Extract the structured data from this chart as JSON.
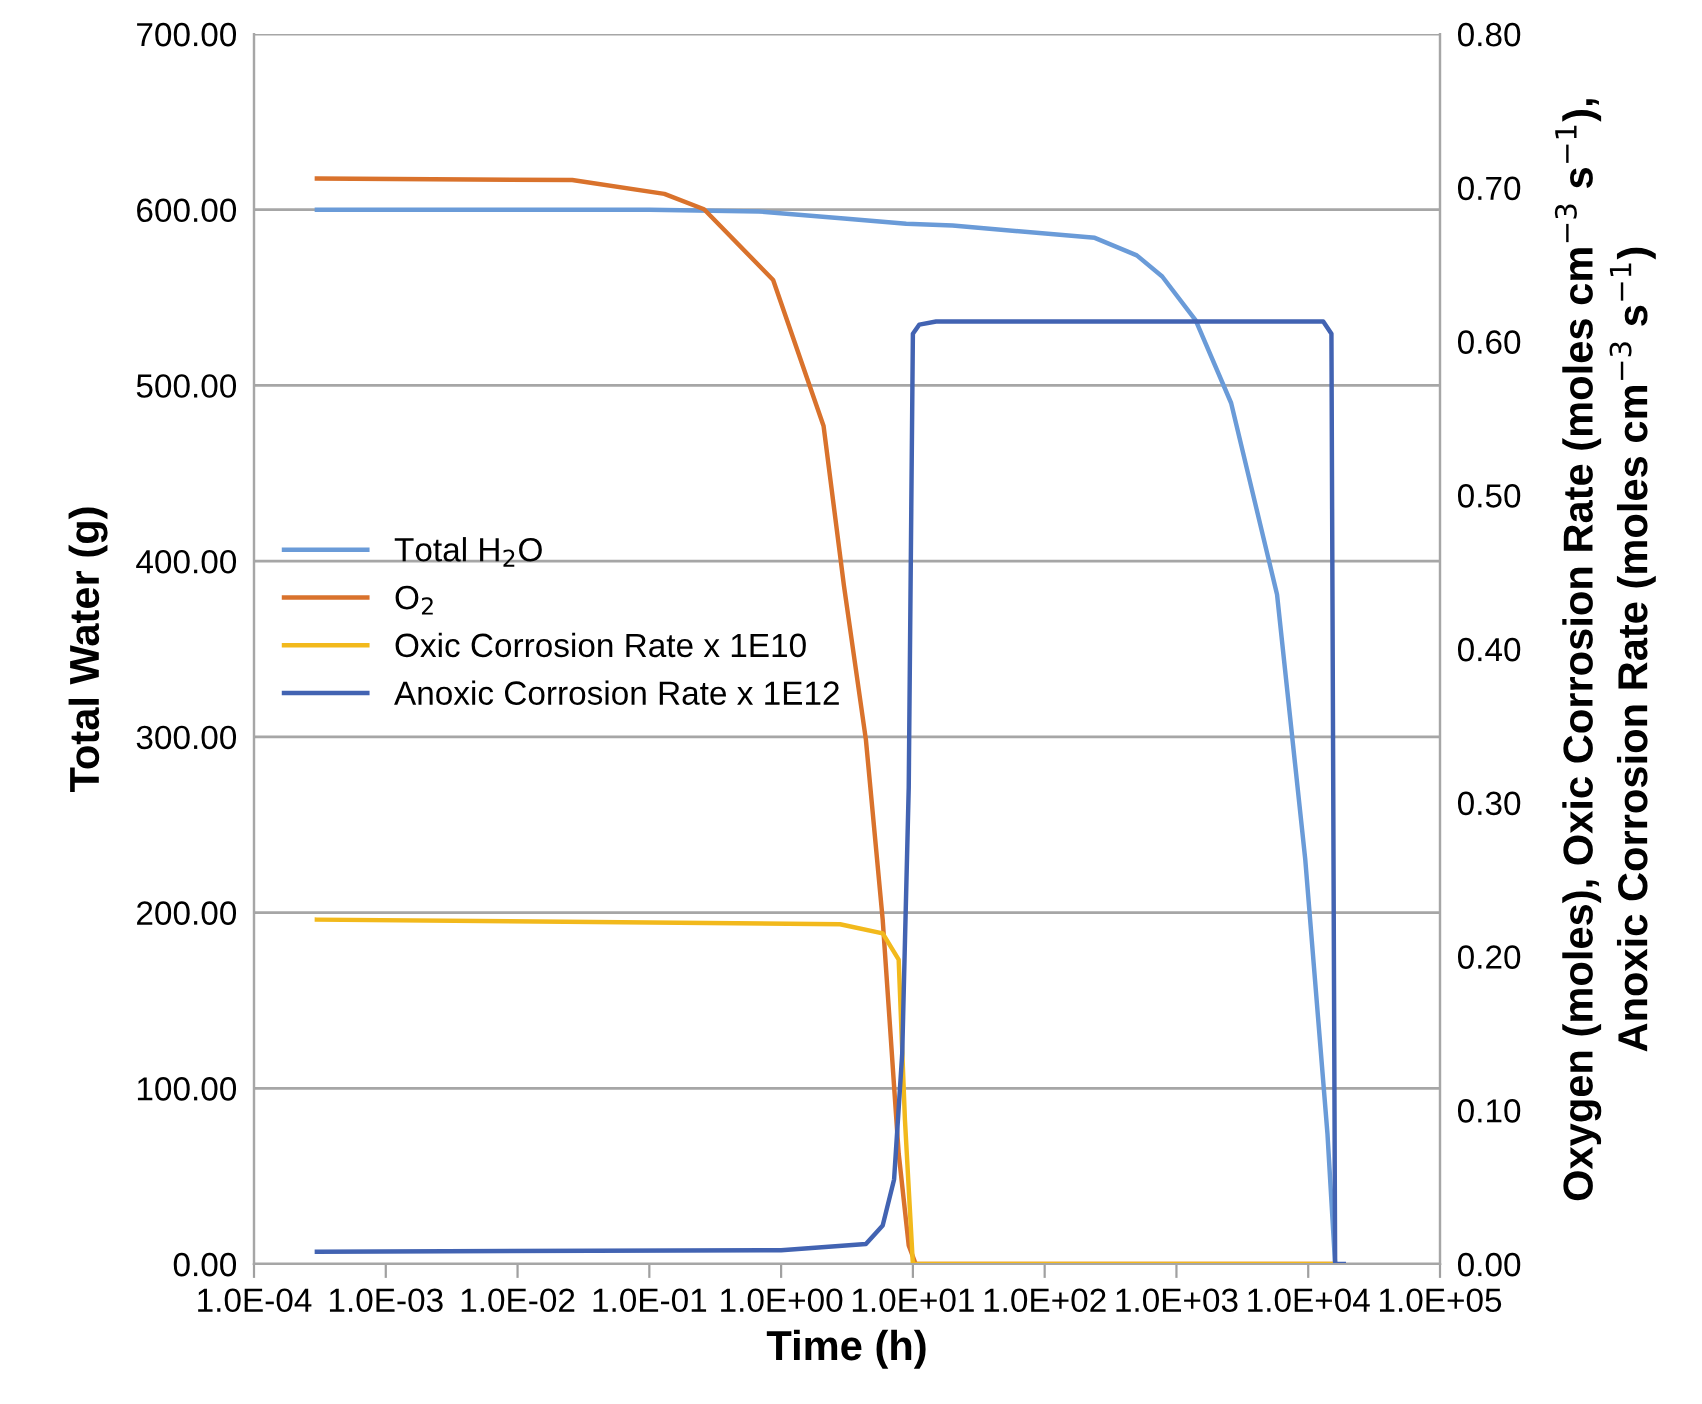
{
  "chart_data": {
    "type": "line",
    "xlabel": "Time (h)",
    "ylabel": "Total Water (g)",
    "y2label": "Oxygen (moles), Oxic Corrosion Rate (moles cm$^{−3}$ s$^{−1}$),\nAnoxic Corrosion Rate (moles cm$^{−3}$ s$^{−1}$)",
    "log": "x",
    "grid": "y",
    "legend": "left",
    "marker": "none",
    "line_style": "solid",
    "xlim": [
      0.0001,
      100000
    ],
    "xticks": [
      {
        "value": 0.0001,
        "label": "1.0E-04"
      },
      {
        "value": 0.001,
        "label": "1.0E-03"
      },
      {
        "value": 0.01,
        "label": "1.0E-02"
      },
      {
        "value": 0.1,
        "label": "1.0E-01"
      },
      {
        "value": 1,
        "label": "1.0E+00"
      },
      {
        "value": 10,
        "label": "1.0E+01"
      },
      {
        "value": 100,
        "label": "1.0E+02"
      },
      {
        "value": 1000,
        "label": "1.0E+03"
      },
      {
        "value": 10000,
        "label": "1.0E+04"
      },
      {
        "value": 100000,
        "label": "1.0E+05"
      }
    ],
    "ylim": [
      0,
      700
    ],
    "yticks": [
      {
        "value": 0,
        "label": "0.00"
      },
      {
        "value": 100,
        "label": "100.00"
      },
      {
        "value": 200,
        "label": "200.00"
      },
      {
        "value": 300,
        "label": "300.00"
      },
      {
        "value": 400,
        "label": "400.00"
      },
      {
        "value": 500,
        "label": "500.00"
      },
      {
        "value": 600,
        "label": "600.00"
      },
      {
        "value": 700,
        "label": "700.00"
      }
    ],
    "y2lim": [
      0,
      0.8
    ],
    "y2ticks": [
      {
        "value": 0,
        "label": "0.00"
      },
      {
        "value": 0.1,
        "label": "0.10"
      },
      {
        "value": 0.2,
        "label": "0.20"
      },
      {
        "value": 0.3,
        "label": "0.30"
      },
      {
        "value": 0.4,
        "label": "0.40"
      },
      {
        "value": 0.5,
        "label": "0.50"
      },
      {
        "value": 0.6,
        "label": "0.60"
      },
      {
        "value": 0.7,
        "label": "0.70"
      },
      {
        "value": 0.8,
        "label": "0.80"
      }
    ],
    "series": [
      {
        "name": "Total H$_{2}$O",
        "color": "#6a9bd8",
        "x": [
          0.0003,
          0.1,
          0.68,
          3,
          8.9,
          20,
          240,
          500,
          780,
          1400,
          2600,
          5800,
          9500,
          14000,
          16000
        ],
        "values": [
          600,
          600,
          599,
          595,
          592,
          591,
          584,
          574,
          562,
          537,
          490,
          381,
          230,
          74,
          0
        ]
      },
      {
        "name": "O$_{2}$",
        "color": "#d9722c",
        "axis": "y2",
        "x": [
          0.0003,
          0.026,
          0.13,
          0.26,
          0.87,
          2.1,
          3,
          4.4,
          5.9,
          7.8,
          9.3,
          10.5,
          16000
        ],
        "values": [
          0.706,
          0.705,
          0.696,
          0.686,
          0.64,
          0.545,
          0.441,
          0.341,
          0.224,
          0.072,
          0.012,
          0.0,
          0.0
        ]
      },
      {
        "name": "Oxic Corrosion Rate x 1E10",
        "color": "#f2b91c",
        "axis": "y2",
        "x": [
          0.0003,
          2.8,
          5.9,
          7.8,
          8.7,
          10,
          16000
        ],
        "values": [
          0.224,
          0.221,
          0.215,
          0.198,
          0.094,
          0.0,
          0.0
        ]
      },
      {
        "name": "Anoxic Corrosion Rate x 1E12",
        "color": "#4263b2",
        "axis": "y2",
        "x": [
          0.0003,
          1,
          4.4,
          5.9,
          7.2,
          8.3,
          9.3,
          10,
          11.2,
          15,
          13000,
          15000,
          16000,
          18600
        ],
        "values": [
          0.008,
          0.009,
          0.013,
          0.025,
          0.055,
          0.137,
          0.31,
          0.605,
          0.611,
          0.613,
          0.613,
          0.605,
          0.0,
          0.0
        ]
      }
    ]
  }
}
